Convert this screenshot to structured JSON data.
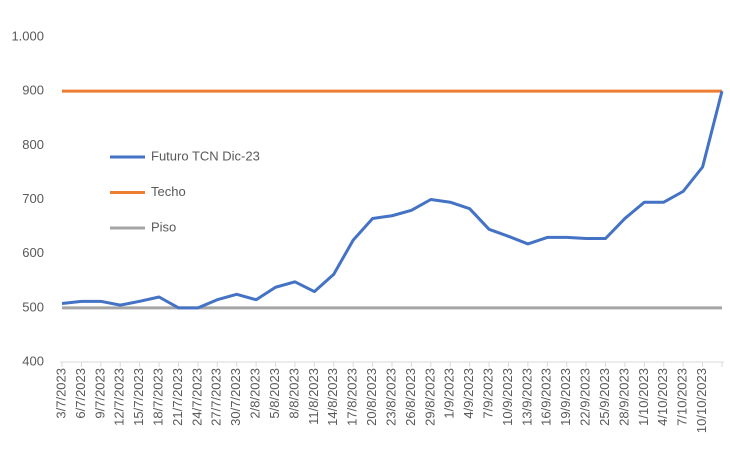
{
  "chart_data": {
    "type": "line",
    "categories": [
      "3/7/2023",
      "6/7/2023",
      "9/7/2023",
      "12/7/2023",
      "15/7/2023",
      "18/7/2023",
      "21/7/2023",
      "24/7/2023",
      "27/7/2023",
      "30/7/2023",
      "2/8/2023",
      "5/8/2023",
      "8/8/2023",
      "11/8/2023",
      "14/8/2023",
      "17/8/2023",
      "20/8/2023",
      "23/8/2023",
      "26/8/2023",
      "29/8/2023",
      "1/9/2023",
      "4/9/2023",
      "7/9/2023",
      "10/9/2023",
      "13/9/2023",
      "16/9/2023",
      "19/9/2023",
      "22/9/2023",
      "25/9/2023",
      "28/9/2023",
      "1/10/2023",
      "4/10/2023",
      "7/10/2023",
      "10/10/2023",
      null
    ],
    "series": [
      {
        "name": "Futuro TCN Dic-23",
        "color": "#4472c4",
        "values": [
          508,
          512,
          512,
          505,
          512,
          520,
          500,
          500,
          515,
          525,
          515,
          538,
          548,
          530,
          562,
          625,
          665,
          670,
          680,
          700,
          695,
          683,
          645,
          632,
          618,
          630,
          630,
          628,
          628,
          665,
          695,
          695,
          715,
          760,
          900
        ]
      },
      {
        "name": "Techo",
        "color": "#ed7d31",
        "values": [
          900,
          900,
          900,
          900,
          900,
          900,
          900,
          900,
          900,
          900,
          900,
          900,
          900,
          900,
          900,
          900,
          900,
          900,
          900,
          900,
          900,
          900,
          900,
          900,
          900,
          900,
          900,
          900,
          900,
          900,
          900,
          900,
          900,
          900,
          900
        ]
      },
      {
        "name": "Piso",
        "color": "#a5a5a5",
        "values": [
          500,
          500,
          500,
          500,
          500,
          500,
          500,
          500,
          500,
          500,
          500,
          500,
          500,
          500,
          500,
          500,
          500,
          500,
          500,
          500,
          500,
          500,
          500,
          500,
          500,
          500,
          500,
          500,
          500,
          500,
          500,
          500,
          500,
          500,
          500
        ]
      }
    ],
    "ylim": [
      400,
      1000
    ],
    "yticks": [
      400,
      500,
      600,
      700,
      800,
      900,
      {
        "value": 1000,
        "label": "1.000"
      }
    ]
  }
}
